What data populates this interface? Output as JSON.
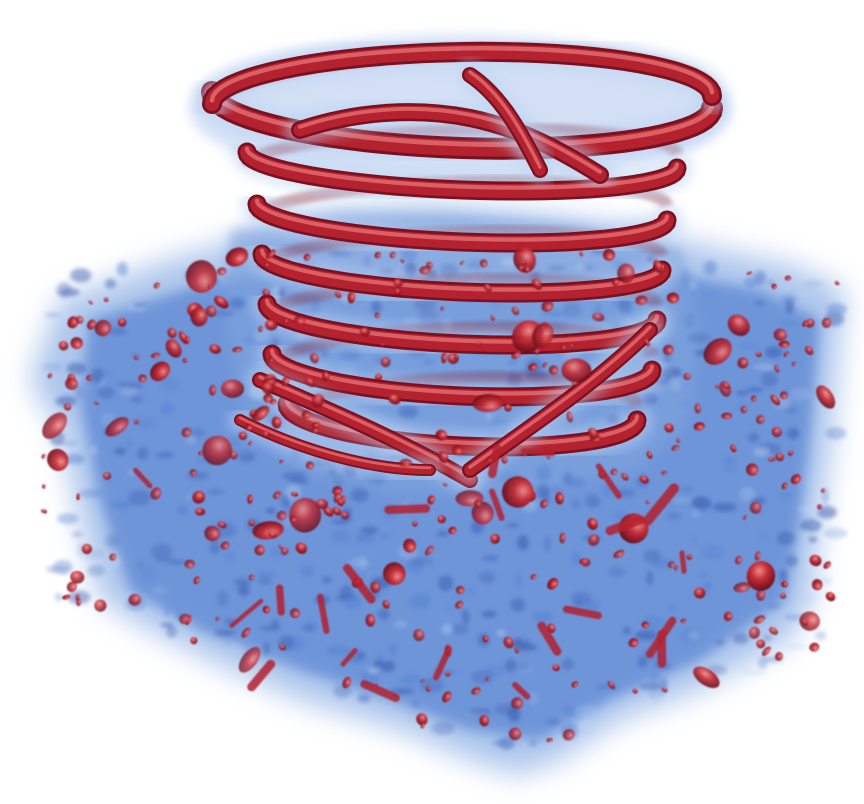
{
  "scene": {
    "subject": "volume-rendered-helical-vortex-tubes",
    "background_color": "#ffffff",
    "palette": {
      "vortex_core": "#b3222e",
      "vortex_highlight": "#e8767a",
      "vortex_shadow": "#7a1020",
      "medium_glow": "#4f7fd0",
      "medium_deep": "#2e4fa8",
      "halo": "#bcd3f2"
    },
    "icons": [
      "volume-render-image"
    ]
  }
}
